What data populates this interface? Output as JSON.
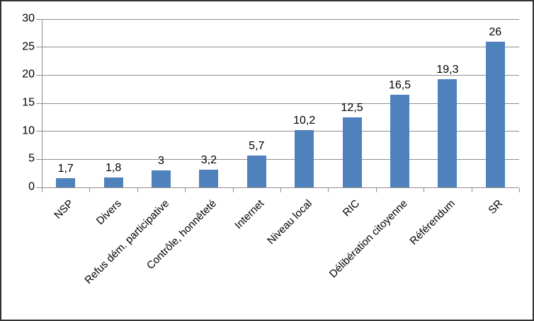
{
  "chart_data": {
    "type": "bar",
    "title": "",
    "xlabel": "",
    "ylabel": "",
    "categories": [
      "NSP",
      "Divers",
      "Refus dém. participative",
      "Contrôle, honnêteté",
      "Internet",
      "Niveau local",
      "RIC",
      "Délibération citoyenne",
      "Référendum",
      "SR"
    ],
    "values": [
      1.7,
      1.8,
      3,
      3.2,
      5.7,
      10.2,
      12.5,
      16.5,
      19.3,
      26
    ],
    "value_labels": [
      "1,7",
      "1,8",
      "3",
      "3,2",
      "5,7",
      "10,2",
      "12,5",
      "16,5",
      "19,3",
      "26"
    ],
    "ylim": [
      0,
      30
    ],
    "ytick_step": 5,
    "ytick_labels": [
      "0",
      "5",
      "10",
      "15",
      "20",
      "25",
      "30"
    ],
    "grid": true,
    "legend": false,
    "category_label_rotation_deg": 45,
    "colors": {
      "bar": "#4f81bd",
      "gridline": "#8f8f8f",
      "axis": "#8f8f8f",
      "text": "#000000",
      "background": "#ffffff",
      "frame_border": "#333333"
    }
  }
}
